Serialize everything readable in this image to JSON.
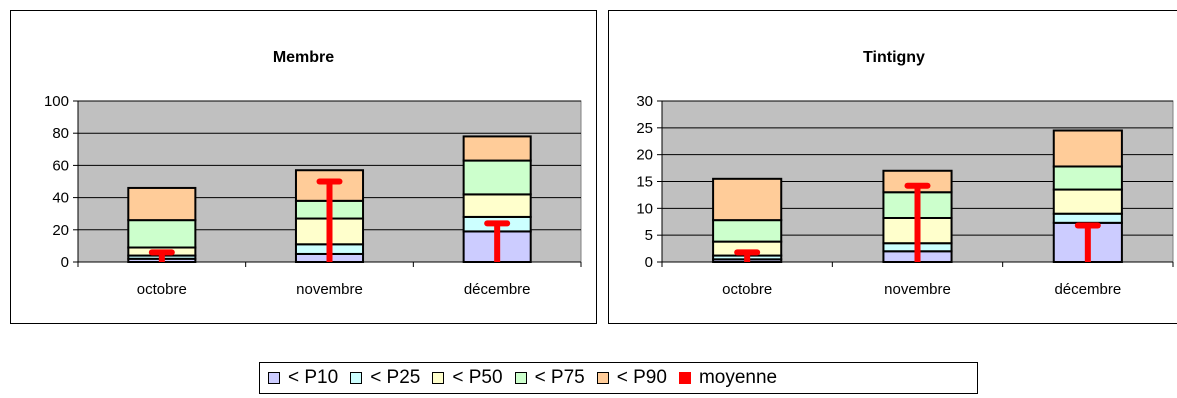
{
  "colors": {
    "P10": "#ccccff",
    "P25": "#ccffff",
    "P50": "#ffffcc",
    "P75": "#ccffcc",
    "P90": "#ffcc99",
    "moyenne": "#ff0000",
    "plot_area": "#c0c0c0"
  },
  "legend": {
    "items": [
      {
        "label": "< P10",
        "key": "P10"
      },
      {
        "label": "< P25",
        "key": "P25"
      },
      {
        "label": "< P50",
        "key": "P50"
      },
      {
        "label": "< P75",
        "key": "P75"
      },
      {
        "label": "< P90",
        "key": "P90"
      },
      {
        "label": "moyenne",
        "key": "moyenne"
      }
    ]
  },
  "chart_data": [
    {
      "type": "bar",
      "title": "Membre",
      "categories": [
        "octobre",
        "novembre",
        "décembre"
      ],
      "ylim": [
        0,
        100
      ],
      "yticks": [
        "0",
        "20",
        "40",
        "60",
        "80",
        "100"
      ],
      "grid": true,
      "legend_position": "bottom",
      "series": [
        {
          "name": "< P10",
          "key": "P10",
          "values": [
            2,
            5,
            19
          ]
        },
        {
          "name": "< P25",
          "key": "P25",
          "values": [
            4,
            11,
            28
          ]
        },
        {
          "name": "< P50",
          "key": "P50",
          "values": [
            9,
            27,
            42
          ]
        },
        {
          "name": "< P75",
          "key": "P75",
          "values": [
            26,
            38,
            63
          ]
        },
        {
          "name": "< P90",
          "key": "P90",
          "values": [
            46,
            57,
            78
          ]
        }
      ],
      "moyenne": [
        6,
        50,
        24
      ]
    },
    {
      "type": "bar",
      "title": "Tintigny",
      "categories": [
        "octobre",
        "novembre",
        "décembre"
      ],
      "ylim": [
        0,
        30
      ],
      "yticks": [
        "0",
        "5",
        "10",
        "15",
        "20",
        "25",
        "30"
      ],
      "grid": true,
      "legend_position": "bottom",
      "series": [
        {
          "name": "< P10",
          "key": "P10",
          "values": [
            0.5,
            2,
            7.3
          ]
        },
        {
          "name": "< P25",
          "key": "P25",
          "values": [
            1.2,
            3.5,
            9
          ]
        },
        {
          "name": "< P50",
          "key": "P50",
          "values": [
            3.8,
            8.2,
            13.5
          ]
        },
        {
          "name": "< P75",
          "key": "P75",
          "values": [
            7.8,
            13,
            17.8
          ]
        },
        {
          "name": "< P90",
          "key": "P90",
          "values": [
            15.5,
            17,
            24.5
          ]
        }
      ],
      "moyenne": [
        1.8,
        14.2,
        6.8
      ]
    }
  ]
}
